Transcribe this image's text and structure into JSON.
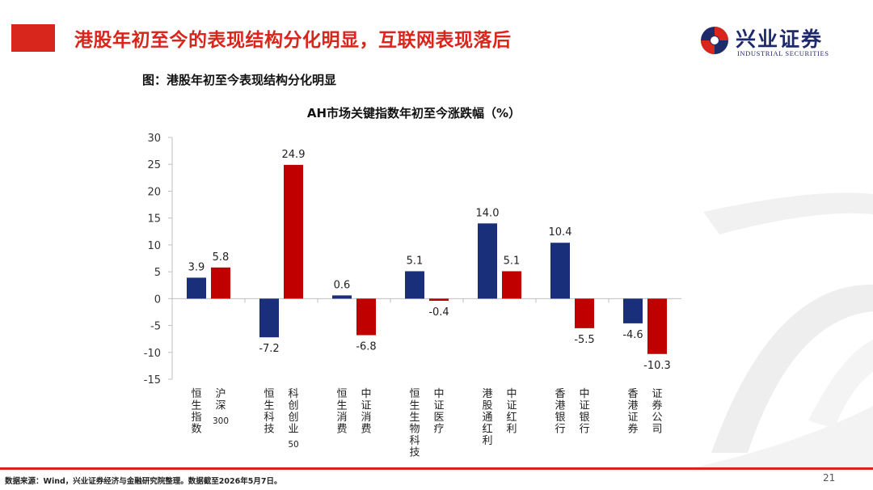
{
  "header": {
    "title": "港股年初至今的表现结构分化明显，互联网表现落后",
    "logo_cn": "兴业证券",
    "logo_en": "INDUSTRIAL SECURITIES"
  },
  "figure_caption": "图：港股年初至今表现结构分化明显",
  "chart_data": {
    "type": "bar",
    "title": "AH市场关键指数年初至今涨跌幅（%）",
    "xlabel": "",
    "ylabel": "",
    "ylim": [
      -15,
      30
    ],
    "yticks": [
      -15,
      -10,
      -5,
      0,
      5,
      10,
      15,
      20,
      25,
      30
    ],
    "grid": false,
    "legend": "none",
    "groups": [
      {
        "bars": [
          {
            "label": "恒生指数",
            "value": 3.9,
            "value_label": "3.9",
            "color": "#1a2f7a"
          },
          {
            "label": "沪深300",
            "value": 5.8,
            "value_label": "5.8",
            "color": "#c00000"
          }
        ]
      },
      {
        "bars": [
          {
            "label": "恒生科技",
            "value": -7.2,
            "value_label": "-7.2",
            "color": "#1a2f7a"
          },
          {
            "label": "科创创业50",
            "value": 24.9,
            "value_label": "24.9",
            "color": "#c00000"
          }
        ]
      },
      {
        "bars": [
          {
            "label": "恒生消费",
            "value": 0.6,
            "value_label": "0.6",
            "color": "#1a2f7a"
          },
          {
            "label": "中证消费",
            "value": -6.8,
            "value_label": "-6.8",
            "color": "#c00000"
          }
        ]
      },
      {
        "bars": [
          {
            "label": "恒生生物科技",
            "value": 5.1,
            "value_label": "5.1",
            "color": "#1a2f7a"
          },
          {
            "label": "中证医疗",
            "value": -0.4,
            "value_label": "-0.4",
            "color": "#c00000"
          }
        ]
      },
      {
        "bars": [
          {
            "label": "港股通红利",
            "value": 14.0,
            "value_label": "14.0",
            "color": "#1a2f7a"
          },
          {
            "label": "中证红利",
            "value": 5.1,
            "value_label": "5.1",
            "color": "#c00000"
          }
        ]
      },
      {
        "bars": [
          {
            "label": "香港银行",
            "value": 10.4,
            "value_label": "10.4",
            "color": "#1a2f7a"
          },
          {
            "label": "中证银行",
            "value": -5.5,
            "value_label": "-5.5",
            "color": "#c00000"
          }
        ]
      },
      {
        "bars": [
          {
            "label": "香港证券",
            "value": -4.6,
            "value_label": "-4.6",
            "color": "#1a2f7a"
          },
          {
            "label": "证券公司",
            "value": -10.3,
            "value_label": "-10.3",
            "color": "#c00000"
          }
        ]
      }
    ]
  },
  "footer": {
    "source": "数据来源：Wind，兴业证券经济与金融研究院整理。数据截至2026年5月7日。",
    "page_number": "21"
  },
  "colors": {
    "accent_red": "#d9261c",
    "hk_bar": "#1a2f7a",
    "a_share_bar": "#c00000",
    "brand_navy": "#1f2a6b"
  }
}
